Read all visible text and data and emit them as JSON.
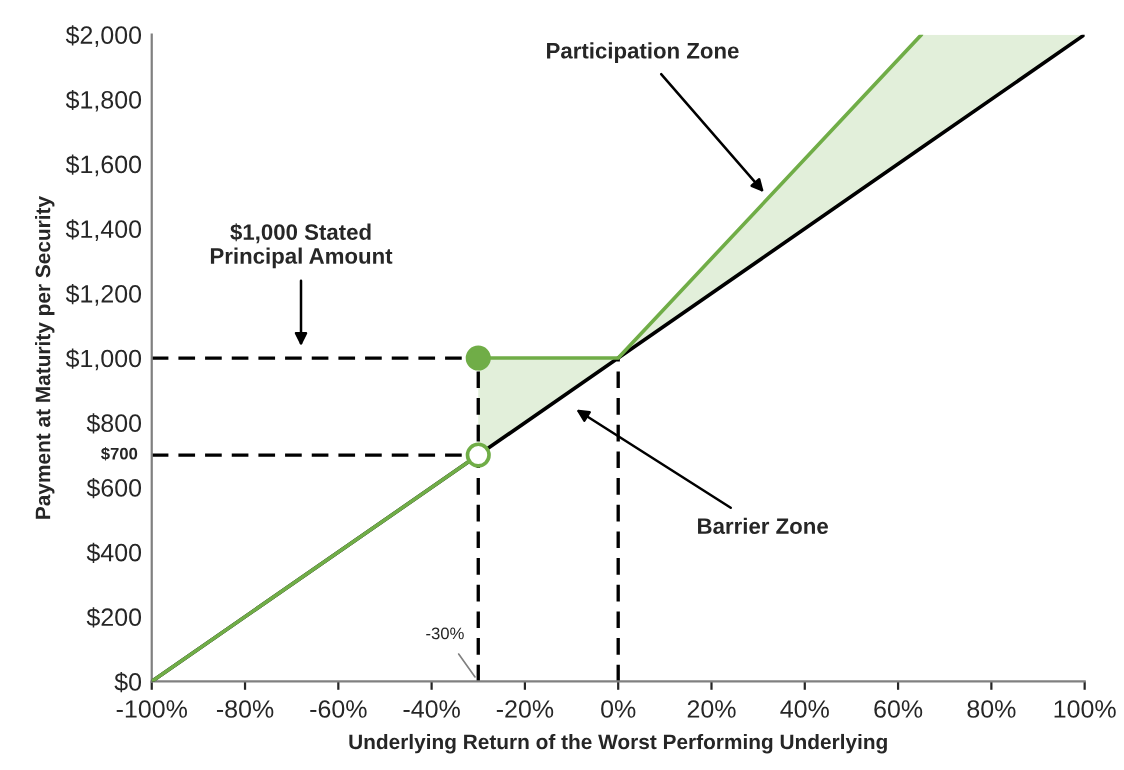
{
  "chart_data": {
    "type": "line",
    "xlabel": "Underlying Return of the Worst Performing Underlying",
    "ylabel": "Payment at Maturity per Security",
    "xlim": [
      -100,
      100
    ],
    "xticks": [
      {
        "value": -100,
        "label": "-100%"
      },
      {
        "value": -80,
        "label": "-80%"
      },
      {
        "value": -60,
        "label": "-60%"
      },
      {
        "value": -40,
        "label": "-40%"
      },
      {
        "value": -20,
        "label": "-20%"
      },
      {
        "value": 0,
        "label": "0%"
      },
      {
        "value": 20,
        "label": "20%"
      },
      {
        "value": 40,
        "label": "40%"
      },
      {
        "value": 60,
        "label": "60%"
      },
      {
        "value": 80,
        "label": "80%"
      },
      {
        "value": 100,
        "label": "100%"
      }
    ],
    "ylim": [
      0,
      2000
    ],
    "yticks": [
      {
        "value": 0,
        "label": "$0"
      },
      {
        "value": 200,
        "label": "$200"
      },
      {
        "value": 400,
        "label": "$400"
      },
      {
        "value": 600,
        "label": "$600"
      },
      {
        "value": 800,
        "label": "$800"
      },
      {
        "value": 1000,
        "label": "$1,000"
      },
      {
        "value": 1200,
        "label": "$1,200"
      },
      {
        "value": 1400,
        "label": "$1,400"
      },
      {
        "value": 1600,
        "label": "$1,600"
      },
      {
        "value": 1800,
        "label": "$1,800"
      },
      {
        "value": 2000,
        "label": "$2,000"
      }
    ],
    "grid": false,
    "legend": false,
    "series": [
      {
        "color": "#000000",
        "x": [
          -100,
          -30,
          0,
          65,
          100
        ],
        "values": [
          0,
          700,
          1000,
          1650,
          2000
        ],
        "line_style": "solid",
        "lower": [
          null,
          700,
          1000,
          1650,
          2000
        ],
        "upper": [
          null,
          1000,
          1000,
          2000,
          2000
        ]
      },
      {
        "color": "#000000",
        "x": [
          -100,
          -30
        ],
        "values": [
          1000,
          1000
        ],
        "line_style": "dashed"
      },
      {
        "color": "#000000",
        "x": [
          -100,
          -30
        ],
        "values": [
          700,
          700
        ],
        "line_style": "dashed"
      },
      {
        "color": "#000000",
        "x": [
          -30,
          -30
        ],
        "values": [
          0,
          1000
        ],
        "line_style": "dashed"
      },
      {
        "color": "#000000",
        "x": [
          0,
          0
        ],
        "values": [
          0,
          1000
        ],
        "line_style": "dashed"
      },
      {
        "color": "#70ad47",
        "x": [
          -100,
          -30
        ],
        "values": [
          0,
          700
        ],
        "line_style": "solid"
      },
      {
        "color": "#70ad47",
        "x": [
          -30,
          0,
          65
        ],
        "values": [
          1000,
          1000,
          2000
        ],
        "line_style": "solid"
      },
      {
        "type": "scatter",
        "color": "#70ad47",
        "x": [
          -30
        ],
        "values": [
          1000
        ],
        "marker": "circle"
      },
      {
        "type": "scatter",
        "color": "#ffffff",
        "x": [
          -30
        ],
        "values": [
          700
        ],
        "marker": "circle"
      }
    ],
    "annotations": [
      {
        "text": "Participation Zone",
        "x": 32,
        "y": 1500
      },
      {
        "text": "$1,000 Stated\nPrincipal Amount",
        "x": -68,
        "y": 1020
      },
      "Barrier Zone",
      {
        "text": "$700",
        "x": -100,
        "y": 700
      },
      {
        "text": "-30%",
        "x": -30,
        "y": 0
      }
    ]
  }
}
